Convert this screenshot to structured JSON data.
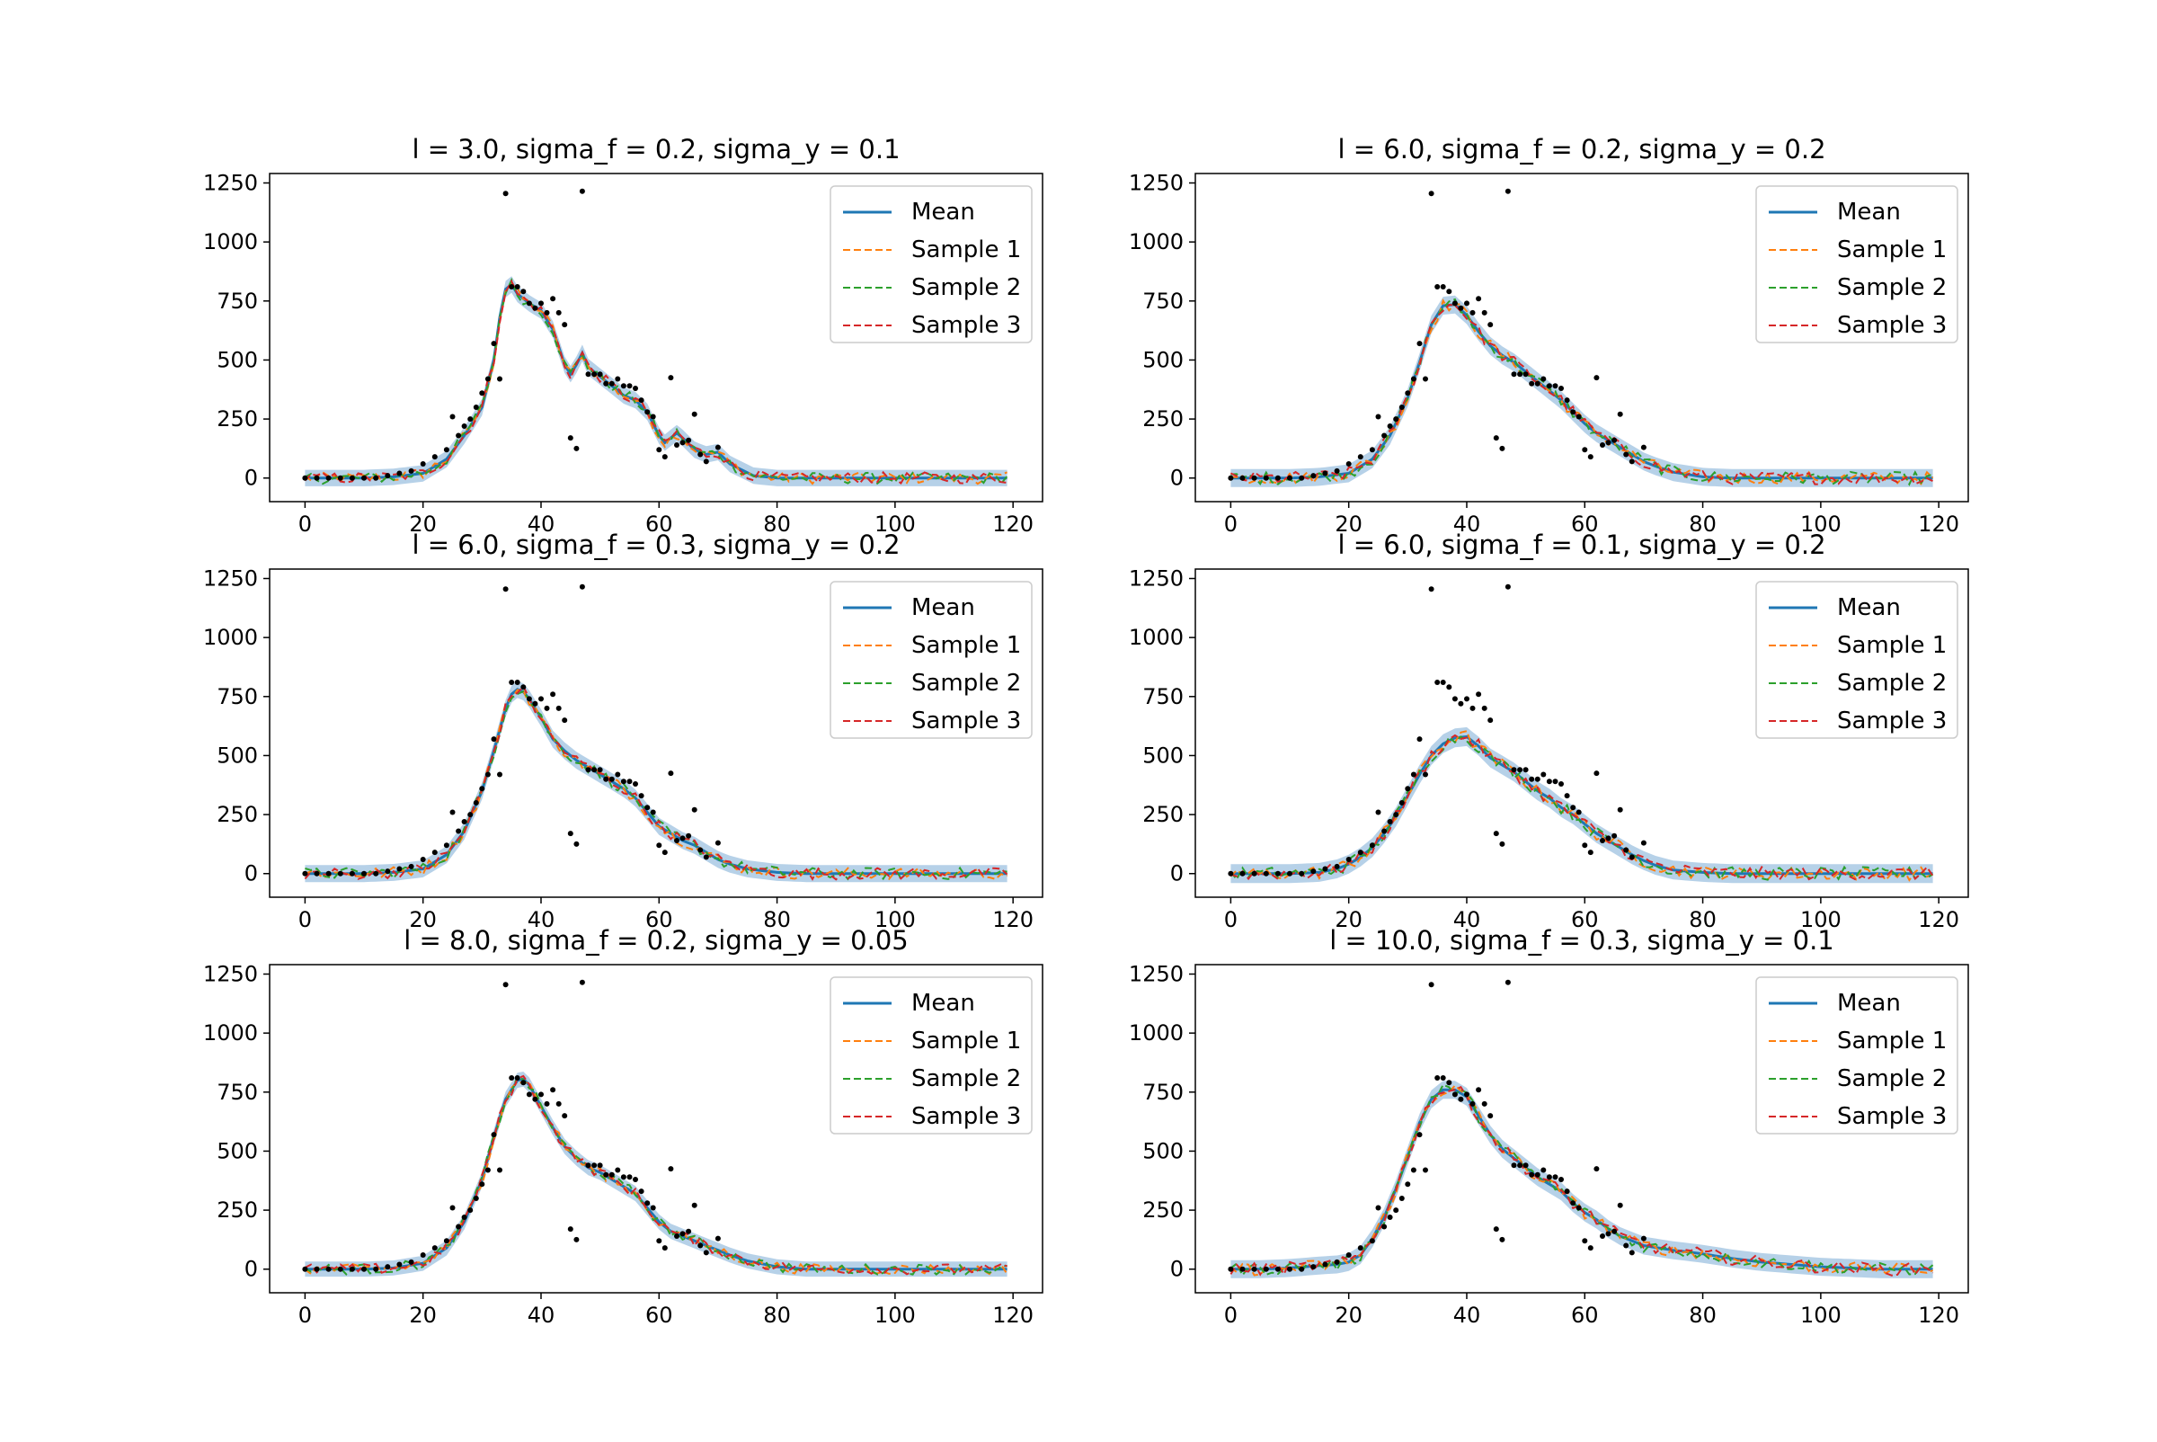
{
  "chart_data": {
    "type": "line",
    "layout": "3x2 grid of subplots",
    "colors": {
      "mean": "#1f77b4",
      "band": "#a9c9e4",
      "sample_1": "#ff7f0e",
      "sample_2": "#2ca02c",
      "sample_3": "#d62728",
      "observations": "#000000"
    },
    "legend_labels": [
      "Mean",
      "Sample 1",
      "Sample 2",
      "Sample 3"
    ],
    "xlim": [
      -6,
      125
    ],
    "ylim": [
      -100,
      1290
    ],
    "xticks": [
      0,
      20,
      40,
      60,
      80,
      100,
      120
    ],
    "yticks": [
      0,
      250,
      500,
      750,
      1000,
      1250
    ],
    "observations": {
      "x": [
        0,
        2,
        4,
        6,
        8,
        10,
        12,
        14,
        16,
        18,
        20,
        22,
        24,
        25,
        26,
        27,
        28,
        29,
        30,
        31,
        32,
        33,
        34,
        35,
        36,
        37,
        38,
        39,
        40,
        41,
        42,
        43,
        44,
        45,
        46,
        47,
        48,
        49,
        50,
        51,
        52,
        53,
        54,
        55,
        56,
        57,
        58,
        59,
        60,
        61,
        62,
        63,
        64,
        65,
        66,
        67,
        68,
        70
      ],
      "y": [
        0,
        0,
        0,
        0,
        0,
        0,
        0,
        10,
        20,
        30,
        60,
        90,
        120,
        260,
        180,
        220,
        250,
        300,
        360,
        420,
        570,
        420,
        1205,
        810,
        810,
        790,
        740,
        720,
        740,
        700,
        760,
        700,
        650,
        170,
        125,
        1215,
        440,
        440,
        440,
        400,
        400,
        420,
        390,
        390,
        380,
        330,
        280,
        260,
        120,
        90,
        425,
        140,
        150,
        160,
        270,
        100,
        70,
        130
      ]
    },
    "panels": [
      {
        "title": "l = 3.0, sigma_f = 0.2, sigma_y = 0.1",
        "mean": {
          "x": [
            0,
            5,
            10,
            15,
            20,
            24,
            27,
            30,
            32,
            33,
            34,
            35,
            36,
            38,
            40,
            42,
            44,
            45,
            46,
            47,
            48,
            50,
            52,
            54,
            56,
            58,
            60,
            61,
            62,
            63,
            64,
            66,
            68,
            70,
            72,
            76,
            80,
            90,
            100,
            110,
            119
          ],
          "y": [
            0,
            0,
            0,
            5,
            20,
            80,
            180,
            300,
            500,
            680,
            800,
            820,
            780,
            740,
            710,
            630,
            480,
            440,
            480,
            530,
            470,
            430,
            390,
            350,
            330,
            280,
            180,
            150,
            170,
            190,
            170,
            120,
            100,
            110,
            60,
            10,
            0,
            0,
            0,
            0,
            0
          ]
        },
        "band_half_width": 35
      },
      {
        "title": "l = 6.0, sigma_f = 0.2, sigma_y = 0.2",
        "mean": {
          "x": [
            0,
            5,
            10,
            15,
            20,
            24,
            27,
            30,
            32,
            34,
            36,
            38,
            40,
            42,
            44,
            46,
            48,
            50,
            52,
            54,
            56,
            58,
            60,
            62,
            64,
            66,
            68,
            70,
            72,
            75,
            80,
            85,
            90,
            100,
            110,
            119
          ],
          "y": [
            0,
            0,
            0,
            5,
            20,
            80,
            180,
            340,
            490,
            650,
            730,
            735,
            690,
            620,
            560,
            520,
            490,
            450,
            410,
            370,
            330,
            280,
            230,
            190,
            160,
            130,
            100,
            70,
            50,
            25,
            5,
            0,
            0,
            0,
            0,
            0
          ]
        },
        "band_half_width": 38
      },
      {
        "title": "l = 6.0, sigma_f = 0.3, sigma_y = 0.2",
        "mean": {
          "x": [
            0,
            5,
            10,
            15,
            20,
            24,
            27,
            30,
            32,
            34,
            35,
            36,
            37,
            38,
            40,
            42,
            44,
            46,
            48,
            50,
            52,
            54,
            56,
            58,
            60,
            62,
            64,
            66,
            68,
            70,
            72,
            75,
            80,
            85,
            90,
            100,
            110,
            119
          ],
          "y": [
            0,
            0,
            0,
            5,
            20,
            80,
            180,
            350,
            520,
            700,
            760,
            780,
            770,
            740,
            660,
            570,
            520,
            480,
            450,
            420,
            390,
            360,
            320,
            260,
            200,
            170,
            140,
            120,
            90,
            60,
            40,
            20,
            5,
            0,
            0,
            0,
            0,
            0
          ]
        },
        "band_half_width": 36
      },
      {
        "title": "l = 6.0, sigma_f = 0.1, sigma_y = 0.2",
        "mean": {
          "x": [
            0,
            5,
            10,
            15,
            18,
            20,
            22,
            24,
            26,
            28,
            30,
            32,
            34,
            36,
            38,
            40,
            42,
            44,
            46,
            48,
            50,
            52,
            54,
            56,
            58,
            60,
            62,
            64,
            66,
            68,
            70,
            72,
            75,
            80,
            85,
            90,
            100,
            110,
            119
          ],
          "y": [
            0,
            0,
            0,
            5,
            20,
            40,
            70,
            110,
            170,
            240,
            330,
            420,
            500,
            550,
            575,
            580,
            540,
            490,
            460,
            430,
            390,
            350,
            320,
            280,
            250,
            210,
            170,
            140,
            110,
            80,
            55,
            35,
            15,
            5,
            0,
            0,
            0,
            0,
            0
          ]
        },
        "band_half_width": 40
      },
      {
        "title": "l = 8.0, sigma_f = 0.2, sigma_y = 0.05",
        "mean": {
          "x": [
            0,
            5,
            10,
            15,
            20,
            24,
            27,
            30,
            32,
            34,
            36,
            37,
            38,
            40,
            42,
            44,
            46,
            48,
            50,
            52,
            54,
            56,
            58,
            60,
            62,
            64,
            66,
            68,
            70,
            72,
            75,
            80,
            85,
            90,
            100,
            110,
            119
          ],
          "y": [
            0,
            0,
            0,
            5,
            25,
            90,
            200,
            380,
            560,
            720,
            800,
            805,
            780,
            690,
            600,
            520,
            470,
            430,
            410,
            380,
            350,
            320,
            260,
            200,
            160,
            140,
            120,
            100,
            80,
            60,
            35,
            10,
            0,
            0,
            0,
            0,
            0
          ]
        },
        "band_half_width": 32
      },
      {
        "title": "l = 10.0, sigma_f = 0.3, sigma_y = 0.1",
        "mean": {
          "x": [
            0,
            5,
            10,
            15,
            18,
            20,
            22,
            24,
            26,
            28,
            30,
            32,
            34,
            36,
            38,
            40,
            42,
            44,
            46,
            48,
            50,
            52,
            54,
            56,
            58,
            60,
            62,
            64,
            66,
            68,
            70,
            75,
            80,
            85,
            90,
            95,
            100,
            110,
            119
          ],
          "y": [
            0,
            0,
            5,
            15,
            20,
            30,
            60,
            130,
            220,
            340,
            480,
            620,
            720,
            760,
            760,
            730,
            650,
            570,
            510,
            470,
            430,
            390,
            360,
            330,
            280,
            240,
            210,
            170,
            140,
            120,
            100,
            80,
            65,
            45,
            30,
            20,
            10,
            0,
            0
          ]
        },
        "band_half_width": 38
      }
    ]
  }
}
